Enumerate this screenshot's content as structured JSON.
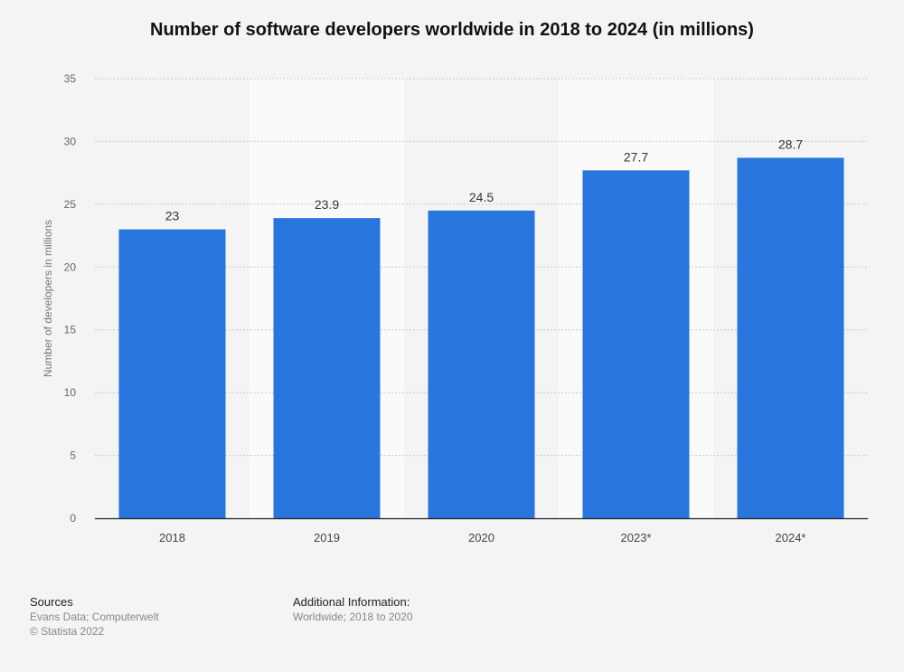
{
  "title": "Number of software developers worldwide in 2018 to 2024 (in millions)",
  "chart_data": {
    "type": "bar",
    "title": "Number of software developers worldwide in 2018 to 2024 (in millions)",
    "xlabel": "",
    "ylabel": "Number of developers in millions",
    "categories": [
      "2018",
      "2019",
      "2020",
      "2023*",
      "2024*"
    ],
    "values": [
      23,
      23.9,
      24.5,
      27.7,
      28.7
    ],
    "value_labels": [
      "23",
      "23.9",
      "24.5",
      "27.7",
      "28.7"
    ],
    "ylim": [
      0,
      35
    ],
    "yticks": [
      0,
      5,
      10,
      15,
      20,
      25,
      30,
      35
    ],
    "grid": true,
    "bar_color": "#2875dd"
  },
  "footer": {
    "sources_heading": "Sources",
    "sources_lines": [
      "Evans Data; Computerwelt",
      "© Statista 2022"
    ],
    "additional_heading": "Additional Information:",
    "additional_lines": [
      "Worldwide; 2018 to 2020"
    ]
  }
}
